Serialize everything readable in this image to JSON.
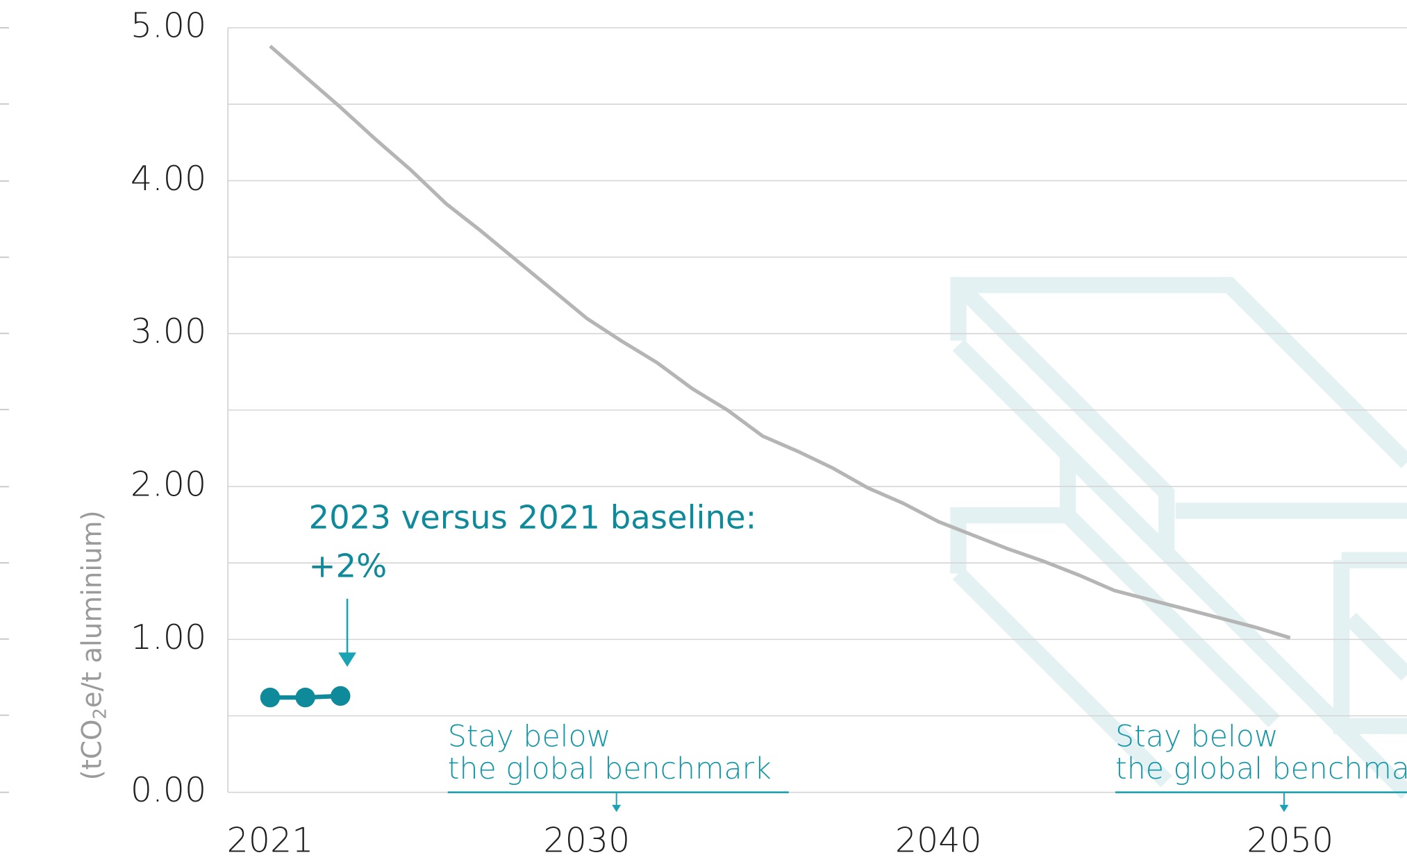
{
  "chart_data": {
    "type": "line",
    "y_label": {
      "before": "(tCO",
      "sub": "2",
      "after": "e/t aluminium)"
    },
    "x": [
      2021,
      2022,
      2023,
      2024,
      2025,
      2026,
      2027,
      2028,
      2029,
      2030,
      2031,
      2032,
      2033,
      2034,
      2035,
      2036,
      2037,
      2038,
      2039,
      2040,
      2041,
      2042,
      2043,
      2044,
      2045,
      2046,
      2047,
      2048,
      2049,
      2050
    ],
    "series": [
      {
        "color": "#b5b5b5",
        "values": [
          4.88,
          4.68,
          4.48,
          4.27,
          4.07,
          3.85,
          3.67,
          3.48,
          3.29,
          3.1,
          2.95,
          2.81,
          2.64,
          2.5,
          2.33,
          2.23,
          2.12,
          1.99,
          1.89,
          1.77,
          1.68,
          1.59,
          1.51,
          1.42,
          1.32,
          1.26,
          1.2,
          1.14,
          1.08,
          1.01
        ]
      },
      {
        "color": "#0e8a9a",
        "values": [
          0.62,
          0.62,
          0.63,
          null,
          null,
          null,
          null,
          null,
          null,
          null,
          null,
          null,
          null,
          null,
          null,
          null,
          null,
          null,
          null,
          null,
          null,
          null,
          null,
          null,
          null,
          null,
          null,
          null,
          null,
          null
        ]
      }
    ],
    "xlim": [
      2019.8,
      2053.5
    ],
    "xticks": [
      2021,
      2030,
      2040,
      2050
    ],
    "ylim": [
      0,
      5
    ],
    "yticks": [
      {
        "value": 0,
        "label": "0.00"
      },
      {
        "value": 1,
        "label": "1.00"
      },
      {
        "value": 2,
        "label": "2.00"
      },
      {
        "value": 3,
        "label": "3.00"
      },
      {
        "value": 4,
        "label": "4.00"
      },
      {
        "value": 5,
        "label": "5.00"
      }
    ],
    "minor_yticks": [
      0.5,
      1.5,
      2.5,
      3.5,
      4.5
    ],
    "grid": true,
    "annotations": {
      "baseline": [
        "2023 versus 2021 baseline:",
        "+2%"
      ],
      "benchmark_2030": [
        "Stay below",
        "the global benchmark"
      ],
      "benchmark_2050": [
        "Stay below",
        "the global benchmark"
      ]
    }
  }
}
